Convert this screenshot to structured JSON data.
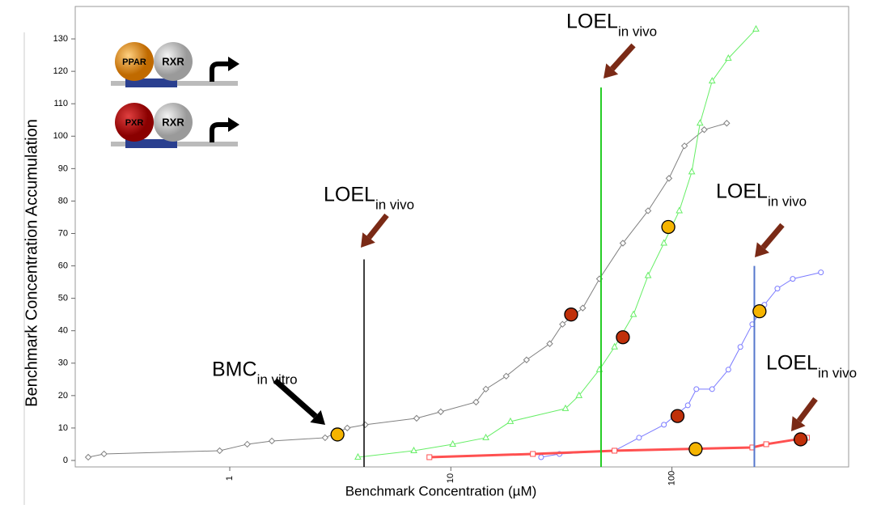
{
  "chart_data": {
    "type": "line",
    "xlabel": "Benchmark Concentration (µM)",
    "ylabel": "Benchmark Concentration Accumulation",
    "xscale": "log",
    "xlim": [
      0.2,
      630
    ],
    "xticks": [
      1,
      10,
      100
    ],
    "ylim": [
      -2,
      140
    ],
    "yticks": [
      0,
      10,
      20,
      30,
      40,
      50,
      60,
      70,
      80,
      90,
      100,
      110,
      120,
      130
    ],
    "series": [
      {
        "color": "#808080",
        "marker": "diamond",
        "width": 1,
        "x": [
          0.229,
          0.27,
          0.9,
          1.2,
          1.55,
          2.7,
          3.4,
          4.1,
          7.0,
          9.0,
          13,
          14.4,
          17.8,
          22,
          28,
          32,
          39.5,
          47,
          60,
          78,
          97,
          114,
          140,
          177
        ],
        "values": [
          1,
          2,
          3,
          5,
          6,
          7,
          10,
          11,
          13,
          15,
          18,
          22,
          26,
          31,
          36,
          42,
          47,
          56,
          67,
          77,
          87,
          97,
          102,
          104
        ]
      },
      {
        "color": "#66ee66",
        "marker": "triangle",
        "width": 1,
        "x": [
          3.8,
          6.8,
          10.2,
          14.4,
          18.6,
          33,
          38,
          47,
          55,
          67,
          78,
          92,
          108,
          123,
          134,
          152,
          180,
          240
        ],
        "values": [
          1,
          3,
          5,
          7,
          12,
          16,
          20,
          28,
          35,
          45,
          57,
          67,
          77,
          89,
          104,
          117,
          124,
          133
        ]
      },
      {
        "color": "#7b7bff",
        "marker": "circle",
        "width": 1,
        "x": [
          25.6,
          31,
          55,
          71,
          92,
          118,
          129,
          152,
          180,
          204,
          231,
          262,
          300,
          352,
          472
        ],
        "values": [
          1,
          2,
          3,
          7,
          11,
          17,
          22,
          22,
          28,
          35,
          42,
          48,
          53,
          56,
          58
        ]
      },
      {
        "color": "#ff5050",
        "marker": "square",
        "width": 3,
        "x": [
          8.0,
          23.5,
          55,
          231,
          267,
          408
        ],
        "values": [
          1,
          2,
          3,
          4,
          5,
          7
        ]
      }
    ],
    "highlights": [
      {
        "color": "#f5b400",
        "x": [
          3.07,
          96.3,
          128,
          249
        ],
        "values": [
          8,
          72,
          3.5,
          46
        ]
      },
      {
        "color": "#c0300a",
        "x": [
          35,
          60,
          106,
          382
        ],
        "values": [
          45,
          38,
          13.7,
          6.5
        ]
      }
    ],
    "vlines": [
      {
        "x": 4.05,
        "top": 62,
        "color": "#000000"
      },
      {
        "x": 47.8,
        "top": 115,
        "color": "#22cc22"
      },
      {
        "x": 236,
        "top": 60,
        "color": "#5577cc"
      }
    ],
    "annotations": [
      {
        "text": "LOEL",
        "sub": "in vivo"
      },
      {
        "text": "LOEL",
        "sub": "in vivo"
      },
      {
        "text": "LOEL",
        "sub": "in vivo"
      },
      {
        "text": "LOEL",
        "sub": "in vivo"
      },
      {
        "text": "BMC",
        "sub": "in vitro"
      }
    ],
    "icons": [
      {
        "left": "PPAR",
        "right": "RXR"
      },
      {
        "left": "PXR",
        "right": "RXR"
      }
    ]
  }
}
